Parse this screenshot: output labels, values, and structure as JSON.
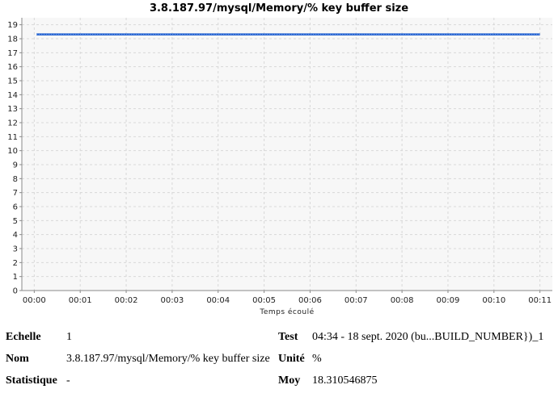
{
  "chart_data": {
    "type": "line",
    "title": "3.8.187.97/mysql/Memory/% key buffer size",
    "xlabel": "Temps écoulé",
    "ylabel": "",
    "x_ticks": [
      "00:00",
      "00:01",
      "00:02",
      "00:03",
      "00:04",
      "00:05",
      "00:06",
      "00:07",
      "00:08",
      "00:09",
      "00:10",
      "00:11"
    ],
    "y_ticks": [
      0,
      1,
      2,
      3,
      4,
      5,
      6,
      7,
      8,
      9,
      10,
      11,
      12,
      13,
      14,
      15,
      16,
      17,
      18,
      19
    ],
    "ylim": [
      0,
      19.5
    ],
    "xlim_minutes": [
      -0.27,
      11.27
    ],
    "grid": true,
    "series": [
      {
        "color": "#1f5fd0",
        "x_minutes": [
          0.05,
          11.0
        ],
        "values": [
          18.310546875,
          18.310546875
        ]
      }
    ]
  },
  "info": {
    "echelle_label": "Echelle",
    "echelle_value": "1",
    "nom_label": "Nom",
    "nom_value": "3.8.187.97/mysql/Memory/% key buffer size",
    "statistique_label": "Statistique",
    "statistique_value": "-",
    "test_label": "Test",
    "test_value": "04:34 - 18 sept. 2020 (bu...BUILD_NUMBER})_1",
    "unite_label": "Unité",
    "unite_value": "%",
    "moy_label": "Moy",
    "moy_value": "18.310546875"
  }
}
